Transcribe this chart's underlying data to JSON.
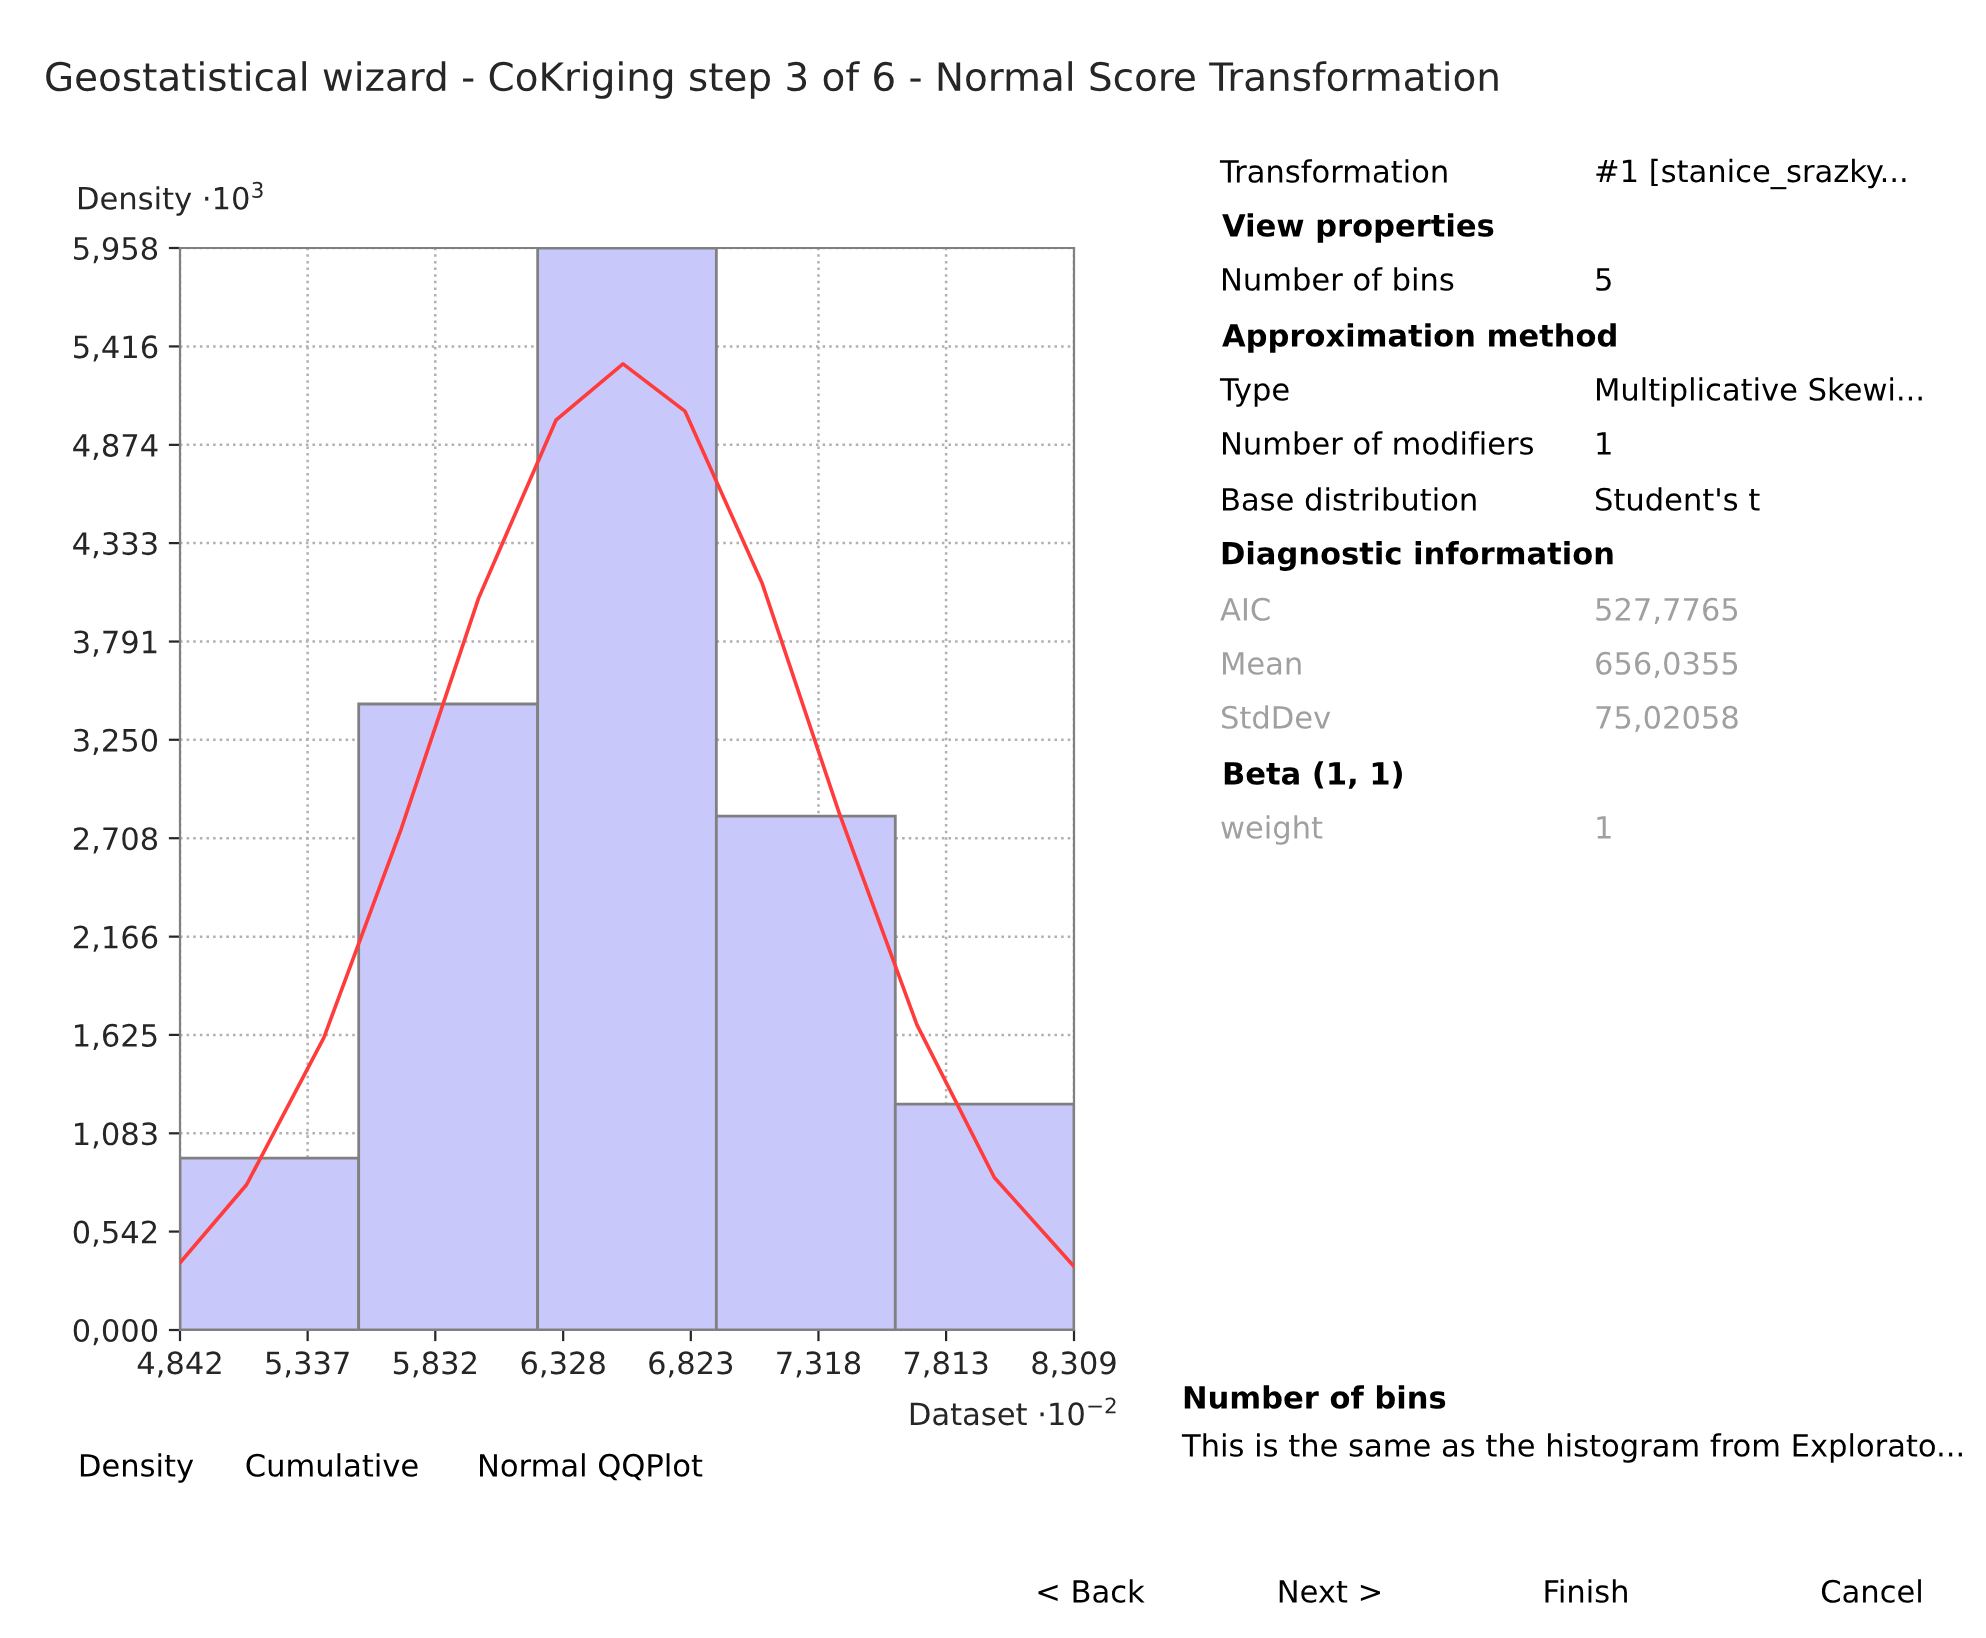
{
  "chart_data": {
    "type": "histogram",
    "title": "Geostatistical wizard - CoKriging step 3 of 6 - Normal Score Transformation",
    "xlabel": "Dataset ·10$^{−2}$",
    "ylabel": "Density ·10$^{3}$",
    "bins": [
      4.842,
      5.535,
      6.229,
      6.922,
      7.616,
      8.309
    ],
    "values": [
      0.947,
      3.447,
      5.958,
      2.83,
      1.244
    ],
    "color": "#c8c8fa",
    "series": [
      {
        "type": "line",
        "color": "#ff3b3b",
        "x": [
          4.842,
          5.1,
          5.4,
          5.7,
          6.0,
          6.3,
          6.56,
          6.8,
          7.1,
          7.4,
          7.7,
          8.0,
          8.309
        ],
        "values": [
          0.37,
          0.8,
          1.61,
          2.76,
          4.03,
          5.01,
          5.32,
          5.06,
          4.11,
          2.84,
          1.68,
          0.84,
          0.35
        ]
      }
    ],
    "xlim": [
      4.842,
      8.309
    ],
    "ylim": [
      0,
      5.958
    ],
    "xticks": [
      {
        "value": 4.842,
        "label": "4,842"
      },
      {
        "value": 5.337,
        "label": "5,337"
      },
      {
        "value": 5.832,
        "label": "5,832"
      },
      {
        "value": 6.328,
        "label": "6,328"
      },
      {
        "value": 6.823,
        "label": "6,823"
      },
      {
        "value": 7.318,
        "label": "7,318"
      },
      {
        "value": 7.813,
        "label": "7,813"
      },
      {
        "value": 8.309,
        "label": "8,309"
      }
    ],
    "yticks": [
      {
        "value": 0,
        "label": "0,000"
      },
      {
        "value": 0.542,
        "label": "0,542"
      },
      {
        "value": 1.083,
        "label": "1,083"
      },
      {
        "value": 1.625,
        "label": "1,625"
      },
      {
        "value": 2.166,
        "label": "2,166"
      },
      {
        "value": 2.708,
        "label": "2,708"
      },
      {
        "value": 3.25,
        "label": "3,250"
      },
      {
        "value": 3.791,
        "label": "3,791"
      },
      {
        "value": 4.333,
        "label": "4,333"
      },
      {
        "value": 4.874,
        "label": "4,874"
      },
      {
        "value": 5.416,
        "label": "5,416"
      },
      {
        "value": 5.958,
        "label": "5,958"
      }
    ],
    "grid": true,
    "annotations": [
      "Density",
      "Cumulative",
      "Normal QQPlot",
      "Transformation",
      "#1 [stanice_srazky...",
      "View properties",
      "Number of bins",
      "5",
      "Approximation method",
      "Type",
      "Multiplicative Skewi...",
      "Number of modifiers",
      "1",
      "Base distribution",
      "Student's t",
      "Diagnostic information",
      "AIC",
      "527,7765",
      "Mean",
      "656,0355",
      "StdDev",
      "75,02058",
      "Beta (1, 1)",
      "weight",
      "1",
      "Number of bins",
      "This is the same as the histogram from Explorato...",
      "< Back",
      "Next >",
      "Finish",
      "Cancel"
    ]
  }
}
